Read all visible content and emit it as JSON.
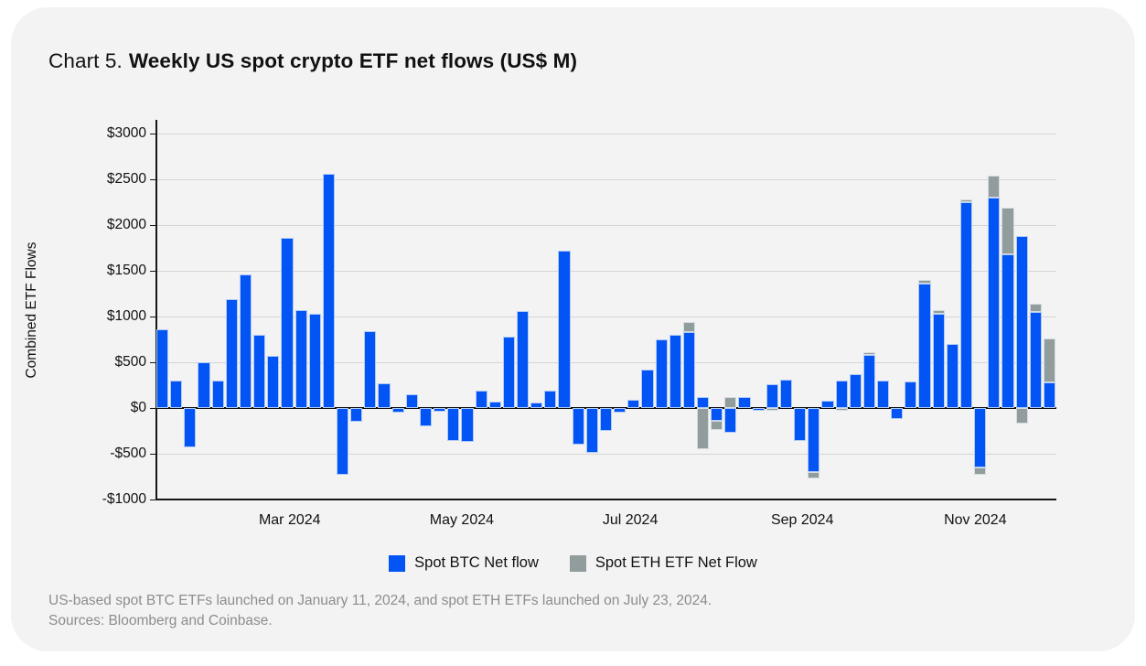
{
  "title": {
    "prefix": "Chart 5.",
    "main": "Weekly US spot crypto ETF net flows (US$ M)"
  },
  "chart_data": {
    "type": "bar",
    "stacked": true,
    "title": "Weekly US spot crypto ETF net flows (US$ M)",
    "ylabel": "Combined ETF Flows",
    "xlabel": "",
    "ylim": [
      -1000,
      3150
    ],
    "grid": true,
    "legend_position": "bottom",
    "background": "#f3f3f3",
    "gridline_color": "#d5d5d5",
    "zero_line_color": "#0b0b0b",
    "yticks": [
      {
        "value": 3000,
        "label": "$3000"
      },
      {
        "value": 2500,
        "label": "$2500"
      },
      {
        "value": 2000,
        "label": "$2000"
      },
      {
        "value": 1500,
        "label": "$1500"
      },
      {
        "value": 1000,
        "label": "$1000"
      },
      {
        "value": 500,
        "label": "$500"
      },
      {
        "value": 0,
        "label": "$0"
      },
      {
        "value": -500,
        "label": "-$500"
      },
      {
        "value": -1000,
        "label": "-$1000"
      }
    ],
    "x_month_labels": [
      {
        "label": "Mar 2024",
        "pos": 0.149
      },
      {
        "label": "May 2024",
        "pos": 0.34
      },
      {
        "label": "Jul 2024",
        "pos": 0.527
      },
      {
        "label": "Sep 2024",
        "pos": 0.718
      },
      {
        "label": "Nov 2024",
        "pos": 0.91
      }
    ],
    "x_unit": "week",
    "series": [
      {
        "name": "Spot BTC Net flow",
        "color": "#0254f5",
        "values": [
          860,
          300,
          -430,
          500,
          300,
          1190,
          1460,
          800,
          570,
          1860,
          1070,
          1030,
          2560,
          -730,
          -150,
          840,
          270,
          -50,
          150,
          -200,
          -40,
          -360,
          -370,
          190,
          70,
          780,
          1060,
          60,
          190,
          1720,
          -400,
          -490,
          -250,
          -50,
          90,
          420,
          750,
          800,
          830,
          120,
          -140,
          -270,
          120,
          -30,
          260,
          310,
          -360,
          -700,
          80,
          300,
          370,
          580,
          300,
          -120,
          290,
          1360,
          1030,
          700,
          2250,
          -650,
          2300,
          1680,
          1880,
          1050,
          280
        ]
      },
      {
        "name": "Spot ETH ETF Net Flow",
        "color": "#919d9c",
        "values": [
          0,
          0,
          0,
          0,
          0,
          0,
          0,
          0,
          0,
          0,
          0,
          0,
          0,
          0,
          0,
          0,
          0,
          0,
          0,
          0,
          0,
          0,
          0,
          0,
          0,
          0,
          0,
          0,
          0,
          0,
          0,
          0,
          0,
          0,
          0,
          0,
          0,
          0,
          110,
          -450,
          -100,
          120,
          0,
          0,
          -30,
          0,
          0,
          -70,
          0,
          -30,
          0,
          30,
          0,
          0,
          0,
          40,
          40,
          0,
          30,
          -80,
          240,
          510,
          -170,
          90,
          480
        ]
      }
    ]
  },
  "footnotes": [
    "US-based spot BTC ETFs launched on January 11, 2024, and spot ETH ETFs launched on July 23, 2024.",
    "Sources: Bloomberg and Coinbase."
  ]
}
